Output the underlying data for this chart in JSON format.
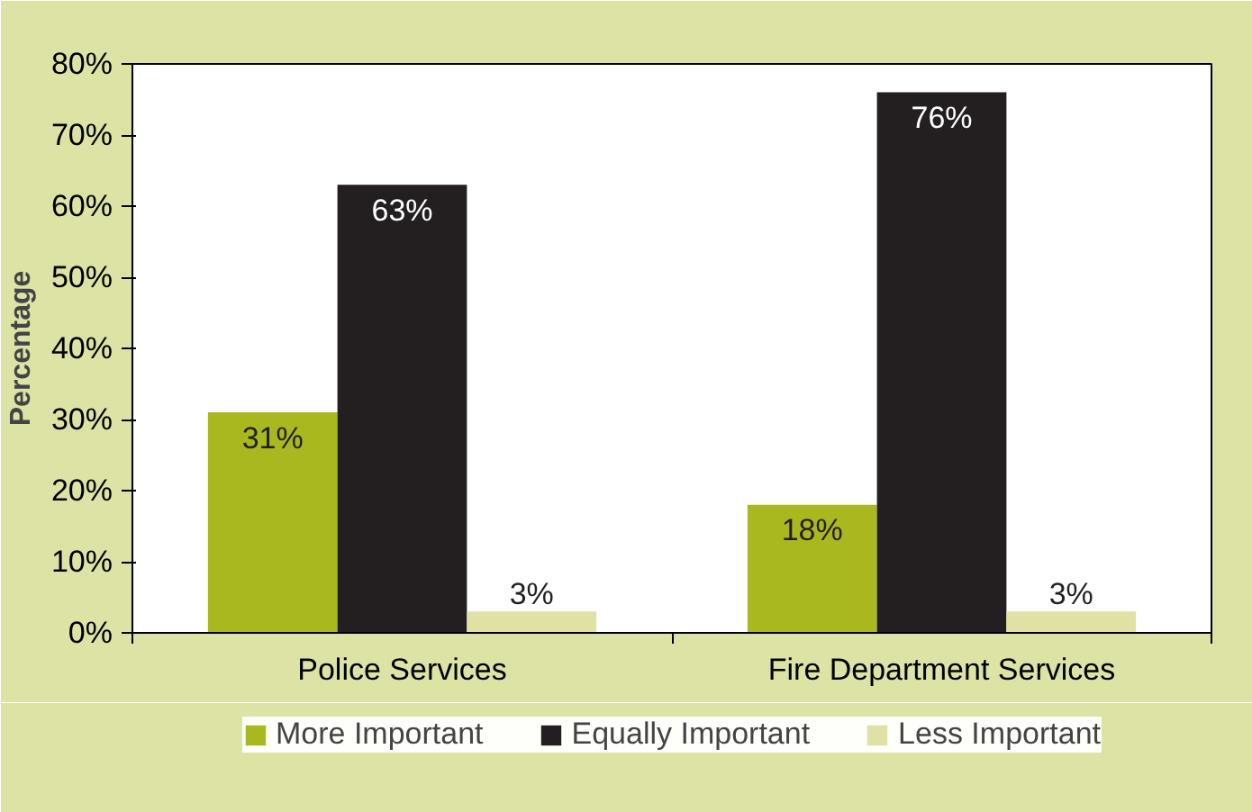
{
  "chart_data": {
    "type": "bar",
    "ylabel": "Percentage",
    "categories": [
      "Police Services",
      "Fire Department Services"
    ],
    "series": [
      {
        "name": "More Important",
        "color": "#aab820",
        "values": [
          31,
          18
        ],
        "value_labels": [
          "31%",
          "18%"
        ]
      },
      {
        "name": "Equally Important",
        "color": "#231f20",
        "values": [
          63,
          76
        ],
        "value_labels": [
          "63%",
          "76%"
        ]
      },
      {
        "name": "Less Important",
        "color": "#dfe2a4",
        "values": [
          3,
          3
        ],
        "value_labels": [
          "3%",
          "3%"
        ]
      }
    ],
    "ylim": [
      0,
      80
    ],
    "yticks": [
      {
        "value": 0,
        "label": "0%"
      },
      {
        "value": 10,
        "label": "10%"
      },
      {
        "value": 20,
        "label": "20%"
      },
      {
        "value": 30,
        "label": "30%"
      },
      {
        "value": 40,
        "label": "40%"
      },
      {
        "value": 50,
        "label": "50%"
      },
      {
        "value": 60,
        "label": "60%"
      },
      {
        "value": 70,
        "label": "70%"
      },
      {
        "value": 80,
        "label": "80%"
      }
    ],
    "grid": false,
    "legend": "bottom"
  }
}
